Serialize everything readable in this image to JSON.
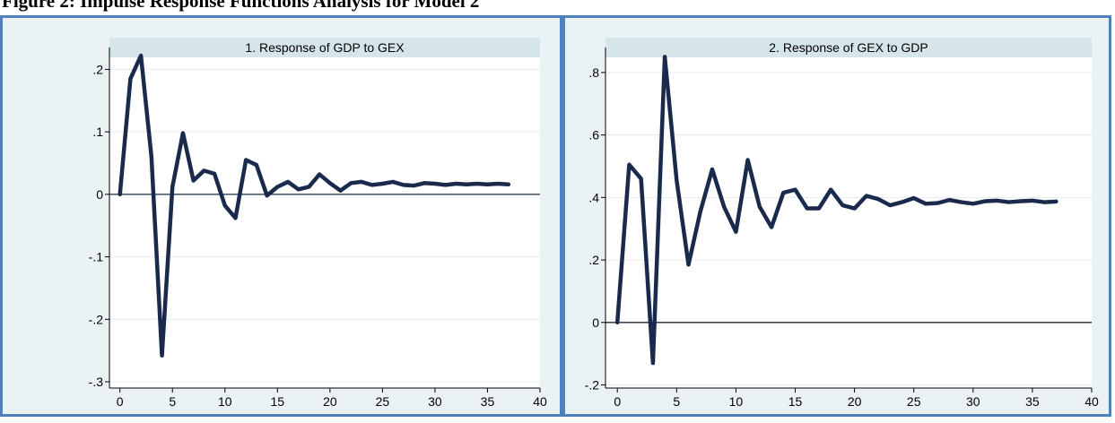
{
  "figure_title": "Figure 2: Impulse Response Functions Analysis for Model 2",
  "colors": {
    "panel_border": "#4f81bd",
    "outer_bg": "#eaf2f3",
    "plot_bg": "#ffffff",
    "title_band": "#d5e5ea",
    "line": "#1a2a4d",
    "grid": "#e6ecef"
  },
  "chart_data": [
    {
      "type": "line",
      "title": "1. Response of GDP to GEX",
      "xlim": [
        -1,
        40
      ],
      "ylim": [
        -0.31,
        0.235
      ],
      "xticks": [
        0,
        5,
        10,
        15,
        20,
        25,
        30,
        35,
        40
      ],
      "xtick_labels": [
        "0",
        "5",
        "10",
        "15",
        "20",
        "25",
        "30",
        "35",
        "40"
      ],
      "yticks": [
        -0.3,
        -0.2,
        -0.1,
        0,
        0.1,
        0.2
      ],
      "ytick_labels": [
        "-.3",
        "-.2",
        "-.1",
        "0",
        ".1",
        ".2"
      ],
      "reference_line": 0,
      "grid": true,
      "series": [
        {
          "x": [
            0,
            1,
            2,
            3,
            4,
            5,
            6,
            7,
            8,
            9,
            10,
            11,
            12,
            13,
            14,
            15,
            16,
            17,
            18,
            19,
            20,
            21,
            22,
            23,
            24,
            25,
            26,
            27,
            28,
            29,
            30,
            31,
            32,
            33,
            34,
            35,
            36,
            37
          ],
          "values": [
            0,
            0.185,
            0.222,
            0.06,
            -0.258,
            0.012,
            0.098,
            0.022,
            0.038,
            0.033,
            -0.018,
            -0.038,
            0.055,
            0.047,
            -0.002,
            0.012,
            0.02,
            0.008,
            0.012,
            0.032,
            0.018,
            0.006,
            0.018,
            0.02,
            0.015,
            0.017,
            0.02,
            0.015,
            0.014,
            0.018,
            0.017,
            0.015,
            0.017,
            0.016,
            0.017,
            0.016,
            0.017,
            0.016
          ]
        }
      ]
    },
    {
      "type": "line",
      "title": "2. Response of GEX to GDP",
      "xlim": [
        -1,
        40
      ],
      "ylim": [
        -0.21,
        0.88
      ],
      "xticks": [
        0,
        5,
        10,
        15,
        20,
        25,
        30,
        35,
        40
      ],
      "xtick_labels": [
        "0",
        "5",
        "10",
        "15",
        "20",
        "25",
        "30",
        "35",
        "40"
      ],
      "yticks": [
        -0.2,
        0,
        0.2,
        0.4,
        0.6,
        0.8
      ],
      "ytick_labels": [
        "-.2",
        "0",
        ".2",
        ".4",
        ".6",
        ".8"
      ],
      "reference_line": 0,
      "grid": true,
      "series": [
        {
          "x": [
            0,
            1,
            2,
            3,
            4,
            5,
            6,
            7,
            8,
            9,
            10,
            11,
            12,
            13,
            14,
            15,
            16,
            17,
            18,
            19,
            20,
            21,
            22,
            23,
            24,
            25,
            26,
            27,
            28,
            29,
            30,
            31,
            32,
            33,
            34,
            35,
            36,
            37
          ],
          "values": [
            0,
            0.505,
            0.46,
            -0.13,
            0.85,
            0.455,
            0.185,
            0.355,
            0.49,
            0.37,
            0.29,
            0.52,
            0.37,
            0.305,
            0.415,
            0.425,
            0.365,
            0.365,
            0.425,
            0.375,
            0.365,
            0.405,
            0.395,
            0.375,
            0.385,
            0.398,
            0.38,
            0.382,
            0.392,
            0.385,
            0.38,
            0.388,
            0.39,
            0.385,
            0.388,
            0.39,
            0.385,
            0.387
          ]
        }
      ]
    }
  ]
}
